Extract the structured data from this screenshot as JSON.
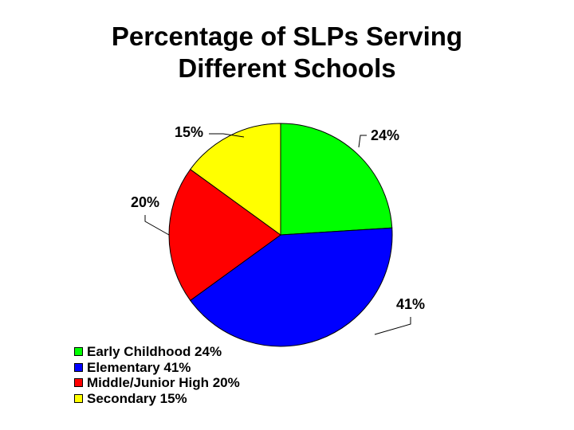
{
  "chart_data": {
    "type": "pie",
    "title_lines": [
      "Percentage of SLPs Serving",
      "Different Schools"
    ],
    "slices": [
      {
        "label": "Early Childhood",
        "value": 24,
        "data_label": "24%",
        "legend": "Early Childhood 24%",
        "color": "#00ff00"
      },
      {
        "label": "Elementary",
        "value": 41,
        "data_label": "41%",
        "legend": "Elementary 41%",
        "color": "#0000ff"
      },
      {
        "label": "Middle/Junior High",
        "value": 20,
        "data_label": "20%",
        "legend": "Middle/Junior High 20%",
        "color": "#ff0000"
      },
      {
        "label": "Secondary",
        "value": 15,
        "data_label": "15%",
        "legend": "Secondary 15%",
        "color": "#ffff00"
      }
    ],
    "legend_position": "bottom-left"
  }
}
